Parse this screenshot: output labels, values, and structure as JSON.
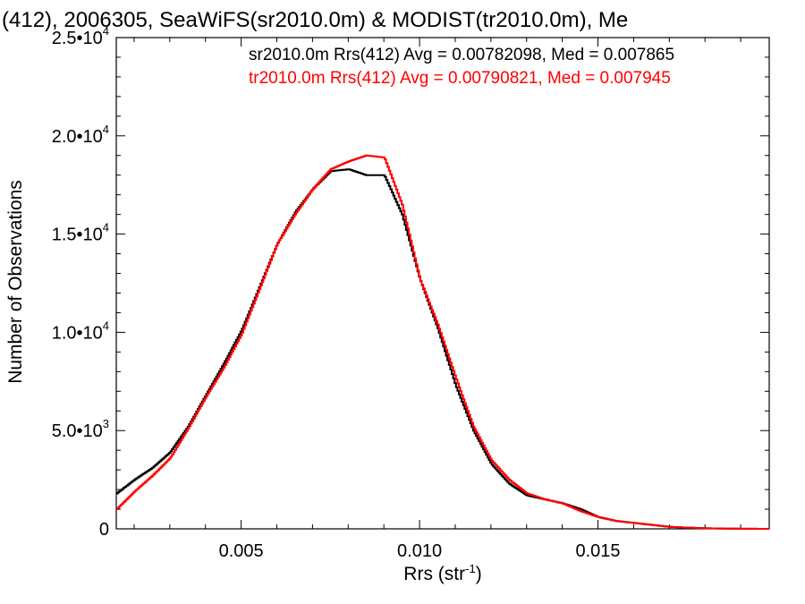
{
  "chart_data": {
    "type": "line",
    "title": "(412), 2006305, SeaWiFS(sr2010.0m) & MODIST(tr2010.0m), Me",
    "xlabel": "Rrs (str",
    "xlabel_sup": "-1",
    "xlabel_close": ")",
    "ylabel": "Number of Observations",
    "xlim": [
      0.0015,
      0.0198
    ],
    "ylim": [
      0,
      25000
    ],
    "x_ticks": [
      {
        "value": 0.005,
        "label": "0.005"
      },
      {
        "value": 0.01,
        "label": "0.010"
      },
      {
        "value": 0.015,
        "label": "0.015"
      }
    ],
    "y_ticks": [
      {
        "value": 0,
        "mant": "0",
        "exp": ""
      },
      {
        "value": 5000,
        "mant": "5.0•10",
        "exp": "3"
      },
      {
        "value": 10000,
        "mant": "1.0•10",
        "exp": "4"
      },
      {
        "value": 15000,
        "mant": "1.5•10",
        "exp": "4"
      },
      {
        "value": 20000,
        "mant": "2.0•10",
        "exp": "4"
      },
      {
        "value": 25000,
        "mant": "2.5•10",
        "exp": "4"
      }
    ],
    "legend_placement": "top-right",
    "annotations": [
      {
        "text": "sr2010.0m Rrs(412) Avg = 0.00782098, Med = 0.007865",
        "color": "#000000"
      },
      {
        "text": "tr2010.0m Rrs(412) Avg = 0.00790821, Med = 0.007945",
        "color": "#ff0000"
      }
    ],
    "series": [
      {
        "color": "#000000",
        "x": [
          0.0015,
          0.002,
          0.0025,
          0.003,
          0.0035,
          0.004,
          0.0045,
          0.005,
          0.0055,
          0.006,
          0.0065,
          0.007,
          0.0075,
          0.008,
          0.0085,
          0.009,
          0.0095,
          0.01,
          0.0105,
          0.011,
          0.0115,
          0.012,
          0.0125,
          0.013,
          0.0135,
          0.014,
          0.0145,
          0.015,
          0.0155,
          0.016,
          0.0165,
          0.017,
          0.0175,
          0.018,
          0.0185,
          0.019,
          0.0198
        ],
        "y": [
          1800,
          2500,
          3100,
          3900,
          5200,
          6800,
          8400,
          10100,
          12300,
          14500,
          16100,
          17300,
          18200,
          18300,
          18000,
          18000,
          16000,
          12700,
          10200,
          7300,
          5000,
          3300,
          2300,
          1700,
          1500,
          1300,
          1000,
          600,
          400,
          300,
          200,
          100,
          60,
          30,
          15,
          5,
          0
        ]
      },
      {
        "color": "#ff0000",
        "x": [
          0.0015,
          0.002,
          0.0025,
          0.003,
          0.0035,
          0.004,
          0.0045,
          0.005,
          0.0055,
          0.006,
          0.0065,
          0.007,
          0.0075,
          0.008,
          0.0085,
          0.009,
          0.0095,
          0.01,
          0.0105,
          0.011,
          0.0115,
          0.012,
          0.0125,
          0.013,
          0.0135,
          0.014,
          0.0145,
          0.015,
          0.0155,
          0.016,
          0.0165,
          0.017,
          0.0175,
          0.018,
          0.0185,
          0.019,
          0.0198
        ],
        "y": [
          1000,
          1900,
          2700,
          3600,
          5100,
          6700,
          8200,
          9900,
          12200,
          14500,
          16000,
          17300,
          18300,
          18700,
          19000,
          18900,
          16500,
          12700,
          10400,
          7700,
          5200,
          3500,
          2500,
          1800,
          1500,
          1300,
          900,
          600,
          400,
          300,
          200,
          100,
          60,
          30,
          15,
          5,
          0
        ]
      }
    ]
  }
}
